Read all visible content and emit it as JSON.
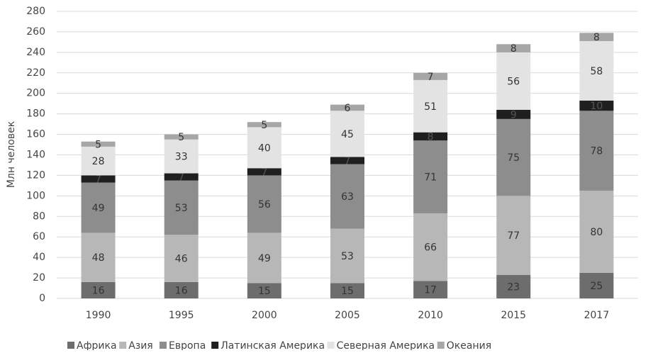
{
  "chart_data": {
    "type": "stacked_bar",
    "y_label": "Млн человек",
    "categories": [
      "1990",
      "1995",
      "2000",
      "2005",
      "2010",
      "2015",
      "2017"
    ],
    "series": [
      {
        "name": "Африка",
        "color": "#6d6d6d",
        "values": [
          16,
          16,
          15,
          15,
          17,
          23,
          25
        ]
      },
      {
        "name": "Азия",
        "color": "#b7b7b7",
        "values": [
          48,
          46,
          49,
          53,
          66,
          77,
          80
        ]
      },
      {
        "name": "Европа",
        "color": "#8d8d8d",
        "values": [
          49,
          53,
          56,
          63,
          71,
          75,
          78
        ]
      },
      {
        "name": "Латинская Америка",
        "color": "#1f1f1f",
        "values": [
          7,
          7,
          7,
          7,
          8,
          9,
          10
        ]
      },
      {
        "name": "Северная Америка",
        "color": "#e3e3e3",
        "values": [
          28,
          33,
          40,
          45,
          51,
          56,
          58
        ]
      },
      {
        "name": "Океания",
        "color": "#a6a6a6",
        "values": [
          5,
          5,
          5,
          6,
          7,
          8,
          8
        ]
      }
    ],
    "ylim": [
      0,
      280
    ],
    "yticks": [
      0,
      20,
      40,
      60,
      80,
      100,
      120,
      140,
      160,
      180,
      200,
      220,
      240,
      260,
      280
    ],
    "grid": true,
    "legend": "bottom"
  }
}
